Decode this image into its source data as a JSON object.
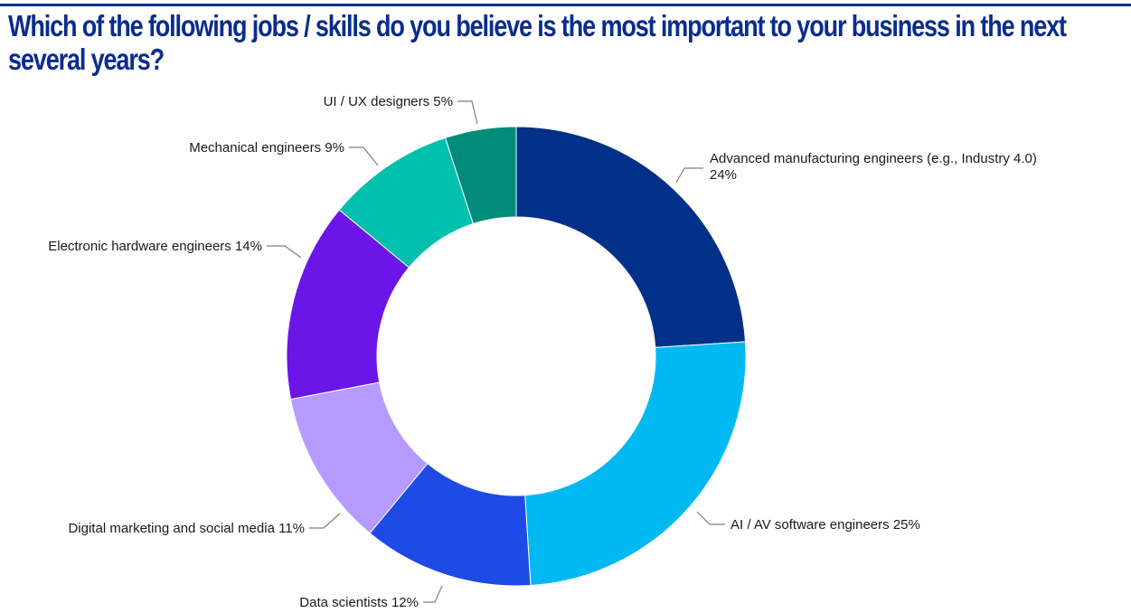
{
  "title": "Which of the following jobs / skills do you believe is the most important to your business in the next several years?",
  "colors": {
    "title": "#0a2d8c",
    "label": "#1a1a1a",
    "leader": "#7f7f7f"
  },
  "chart_data": {
    "type": "pie",
    "donut": true,
    "title": "Which of the following jobs / skills do you believe is the most important to your business in the next several years?",
    "start": "12 o'clock",
    "direction": "clockwise",
    "slices": [
      {
        "label": "Advanced manufacturing engineers (e.g., Industry 4.0)",
        "value": 24,
        "display": "24%",
        "color": "#003087"
      },
      {
        "label": "AI / AV software engineers",
        "value": 25,
        "display": "25%",
        "color": "#00b9f2"
      },
      {
        "label": "Data scientists",
        "value": 12,
        "display": "12%",
        "color": "#1e4ae6"
      },
      {
        "label": "Digital marketing and social media",
        "value": 11,
        "display": "11%",
        "color": "#b59bff"
      },
      {
        "label": "Electronic hardware engineers",
        "value": 14,
        "display": "14%",
        "color": "#6b15e8"
      },
      {
        "label": "Mechanical engineers",
        "value": 9,
        "display": "9%",
        "color": "#00c0ae"
      },
      {
        "label": "UI / UX designers",
        "value": 5,
        "display": "5%",
        "color": "#008b7a"
      }
    ]
  }
}
